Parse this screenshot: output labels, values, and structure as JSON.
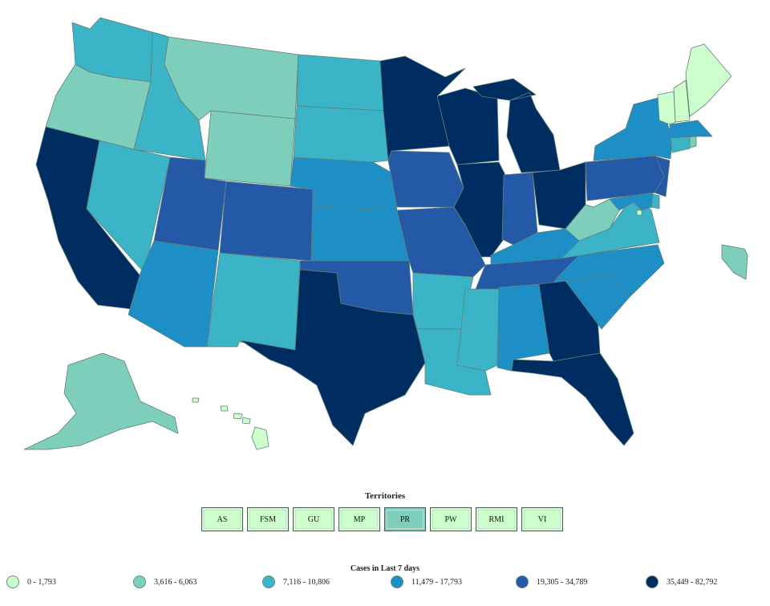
{
  "map": {
    "states": [
      {
        "id": "WA",
        "bin": 2
      },
      {
        "id": "OR",
        "bin": 1
      },
      {
        "id": "CA",
        "bin": 5
      },
      {
        "id": "ID",
        "bin": 2
      },
      {
        "id": "NV",
        "bin": 2
      },
      {
        "id": "MT",
        "bin": 1
      },
      {
        "id": "WY",
        "bin": 1
      },
      {
        "id": "UT",
        "bin": 4
      },
      {
        "id": "AZ",
        "bin": 3
      },
      {
        "id": "CO",
        "bin": 4
      },
      {
        "id": "NM",
        "bin": 2
      },
      {
        "id": "ND",
        "bin": 2
      },
      {
        "id": "SD",
        "bin": 2
      },
      {
        "id": "NE",
        "bin": 3
      },
      {
        "id": "KS",
        "bin": 3
      },
      {
        "id": "OK",
        "bin": 4
      },
      {
        "id": "TX",
        "bin": 5
      },
      {
        "id": "MN",
        "bin": 5
      },
      {
        "id": "IA",
        "bin": 4
      },
      {
        "id": "MO",
        "bin": 4
      },
      {
        "id": "AR",
        "bin": 2
      },
      {
        "id": "LA",
        "bin": 2
      },
      {
        "id": "WI",
        "bin": 5
      },
      {
        "id": "IL",
        "bin": 5
      },
      {
        "id": "MI",
        "bin": 5
      },
      {
        "id": "IN",
        "bin": 4
      },
      {
        "id": "OH",
        "bin": 5
      },
      {
        "id": "KY",
        "bin": 3
      },
      {
        "id": "TN",
        "bin": 4
      },
      {
        "id": "MS",
        "bin": 2
      },
      {
        "id": "AL",
        "bin": 3
      },
      {
        "id": "GA",
        "bin": 5
      },
      {
        "id": "FL",
        "bin": 5
      },
      {
        "id": "SC",
        "bin": 3
      },
      {
        "id": "NC",
        "bin": 3
      },
      {
        "id": "VA",
        "bin": 2
      },
      {
        "id": "WV",
        "bin": 1
      },
      {
        "id": "PA",
        "bin": 4
      },
      {
        "id": "NY",
        "bin": 3
      },
      {
        "id": "NJ",
        "bin": 4
      },
      {
        "id": "DE",
        "bin": 2
      },
      {
        "id": "MD",
        "bin": 3
      },
      {
        "id": "DC",
        "bin": 0
      },
      {
        "id": "CT",
        "bin": 2
      },
      {
        "id": "RI",
        "bin": 1
      },
      {
        "id": "MA",
        "bin": 3
      },
      {
        "id": "VT",
        "bin": 0
      },
      {
        "id": "NH",
        "bin": 0
      },
      {
        "id": "ME",
        "bin": 0
      },
      {
        "id": "AK",
        "bin": 1
      },
      {
        "id": "HI",
        "bin": 0
      }
    ]
  },
  "territories": {
    "title": "Territories",
    "items": [
      {
        "label": "AS",
        "bin": 0
      },
      {
        "label": "FSM",
        "bin": 0
      },
      {
        "label": "GU",
        "bin": 0
      },
      {
        "label": "MP",
        "bin": 0
      },
      {
        "label": "PR",
        "bin": 1
      },
      {
        "label": "PW",
        "bin": 0
      },
      {
        "label": "RMI",
        "bin": 0
      },
      {
        "label": "VI",
        "bin": 0
      }
    ]
  },
  "legend": {
    "title": "Cases in Last 7 days",
    "bins": [
      {
        "label": "0 - 1,793",
        "color": "#ccffcc"
      },
      {
        "label": "3,616 - 6,063",
        "color": "#7dceba"
      },
      {
        "label": "7,116 - 10,806",
        "color": "#3cb4c8"
      },
      {
        "label": "11,479 - 17,793",
        "color": "#1e8fc6"
      },
      {
        "label": "19,305 - 34,789",
        "color": "#2359a6"
      },
      {
        "label": "35,449 - 82,792",
        "color": "#002d61"
      }
    ]
  }
}
